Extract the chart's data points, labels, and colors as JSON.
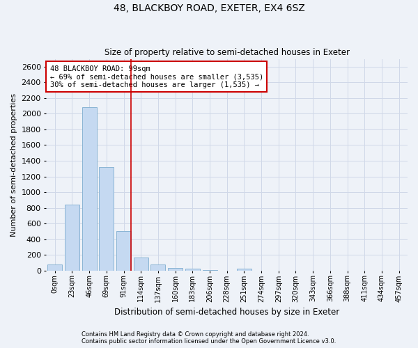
{
  "title": "48, BLACKBOY ROAD, EXETER, EX4 6SZ",
  "subtitle": "Size of property relative to semi-detached houses in Exeter",
  "xlabel": "Distribution of semi-detached houses by size in Exeter",
  "ylabel": "Number of semi-detached properties",
  "bar_labels": [
    "0sqm",
    "23sqm",
    "46sqm",
    "69sqm",
    "91sqm",
    "114sqm",
    "137sqm",
    "160sqm",
    "183sqm",
    "206sqm",
    "228sqm",
    "251sqm",
    "274sqm",
    "297sqm",
    "320sqm",
    "343sqm",
    "366sqm",
    "388sqm",
    "411sqm",
    "434sqm",
    "457sqm"
  ],
  "bar_values": [
    75,
    840,
    2080,
    1320,
    500,
    165,
    75,
    30,
    20,
    5,
    0,
    20,
    0,
    0,
    0,
    0,
    0,
    0,
    0,
    0,
    0
  ],
  "bar_color": "#c5d9f1",
  "bar_edge_color": "#8ab4d4",
  "vline_x": 4.43,
  "vline_color": "#cc0000",
  "annotation_title": "48 BLACKBOY ROAD: 99sqm",
  "annotation_line1": "← 69% of semi-detached houses are smaller (3,535)",
  "annotation_line2": "30% of semi-detached houses are larger (1,535) →",
  "annotation_box_color": "#ffffff",
  "annotation_box_edge": "#cc0000",
  "grid_color": "#d0d8e8",
  "ylim": [
    0,
    2700
  ],
  "yticks": [
    0,
    200,
    400,
    600,
    800,
    1000,
    1200,
    1400,
    1600,
    1800,
    2000,
    2200,
    2400,
    2600
  ],
  "footer1": "Contains HM Land Registry data © Crown copyright and database right 2024.",
  "footer2": "Contains public sector information licensed under the Open Government Licence v3.0.",
  "bg_color": "#eef2f8"
}
